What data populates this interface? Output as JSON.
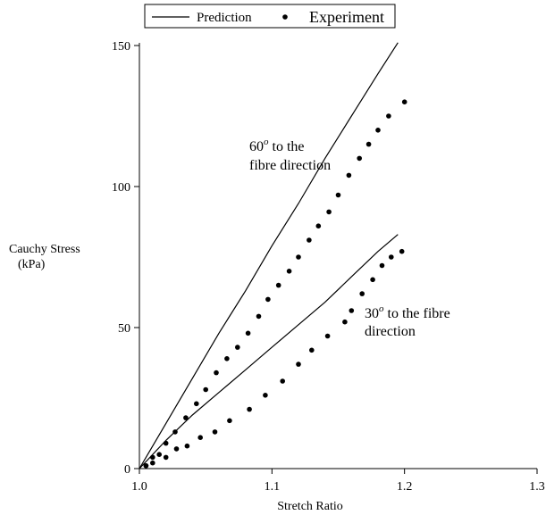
{
  "chart_data": {
    "type": "scatter",
    "title": "",
    "xlabel": "Stretch Ratio",
    "ylabel": "Cauchy Stress",
    "ylabel_unit": "(kPa)",
    "xlim": [
      1.0,
      1.3
    ],
    "ylim": [
      0,
      150
    ],
    "xticks": [
      "1.0",
      "1.1",
      "1.2",
      "1.3"
    ],
    "yticks": [
      "0",
      "50",
      "100",
      "150"
    ],
    "grid": false,
    "legend": {
      "placement": "top",
      "entries": [
        {
          "label": "Prediction",
          "marker": "line"
        },
        {
          "label": "Experiment",
          "marker": "dot"
        }
      ]
    },
    "annotations": {
      "sixty": {
        "angle": "60",
        "sup": "o",
        "line1_rest": " to the",
        "line2": "fibre direction"
      },
      "thirty": {
        "angle": "30",
        "sup": "o",
        "line1_rest": " to the fibre",
        "line2": "direction"
      }
    },
    "series": [
      {
        "name": "Prediction",
        "case": "60",
        "style": "line",
        "x": [
          1.0,
          1.02,
          1.04,
          1.06,
          1.08,
          1.1,
          1.12,
          1.14,
          1.16,
          1.18,
          1.195
        ],
        "y": [
          0,
          16,
          32,
          48,
          63,
          79,
          94,
          110,
          125,
          140,
          151
        ]
      },
      {
        "name": "Experiment",
        "case": "60",
        "style": "dots",
        "x": [
          1.005,
          1.01,
          1.015,
          1.02,
          1.027,
          1.035,
          1.043,
          1.05,
          1.058,
          1.066,
          1.074,
          1.082,
          1.09,
          1.097,
          1.105,
          1.113,
          1.12,
          1.128,
          1.135,
          1.143,
          1.15,
          1.158,
          1.166,
          1.173,
          1.18,
          1.188,
          1.2
        ],
        "y": [
          1,
          4,
          5,
          9,
          13,
          18,
          23,
          28,
          34,
          39,
          43,
          48,
          54,
          60,
          65,
          70,
          75,
          81,
          86,
          91,
          97,
          104,
          110,
          115,
          120,
          125,
          130
        ]
      },
      {
        "name": "Prediction",
        "case": "30",
        "style": "line",
        "x": [
          1.0,
          1.02,
          1.04,
          1.06,
          1.08,
          1.1,
          1.12,
          1.14,
          1.16,
          1.18,
          1.195
        ],
        "y": [
          0,
          10,
          19,
          27,
          35,
          43,
          51,
          59,
          68,
          77,
          83
        ]
      },
      {
        "name": "Experiment",
        "case": "30",
        "style": "dots",
        "x": [
          1.005,
          1.01,
          1.02,
          1.028,
          1.036,
          1.046,
          1.057,
          1.068,
          1.083,
          1.095,
          1.108,
          1.12,
          1.13,
          1.142,
          1.155,
          1.16,
          1.168,
          1.176,
          1.183,
          1.19,
          1.198
        ],
        "y": [
          1,
          2,
          4,
          7,
          8,
          11,
          13,
          17,
          21,
          26,
          31,
          37,
          42,
          47,
          52,
          56,
          62,
          67,
          72,
          75,
          77
        ]
      }
    ]
  }
}
